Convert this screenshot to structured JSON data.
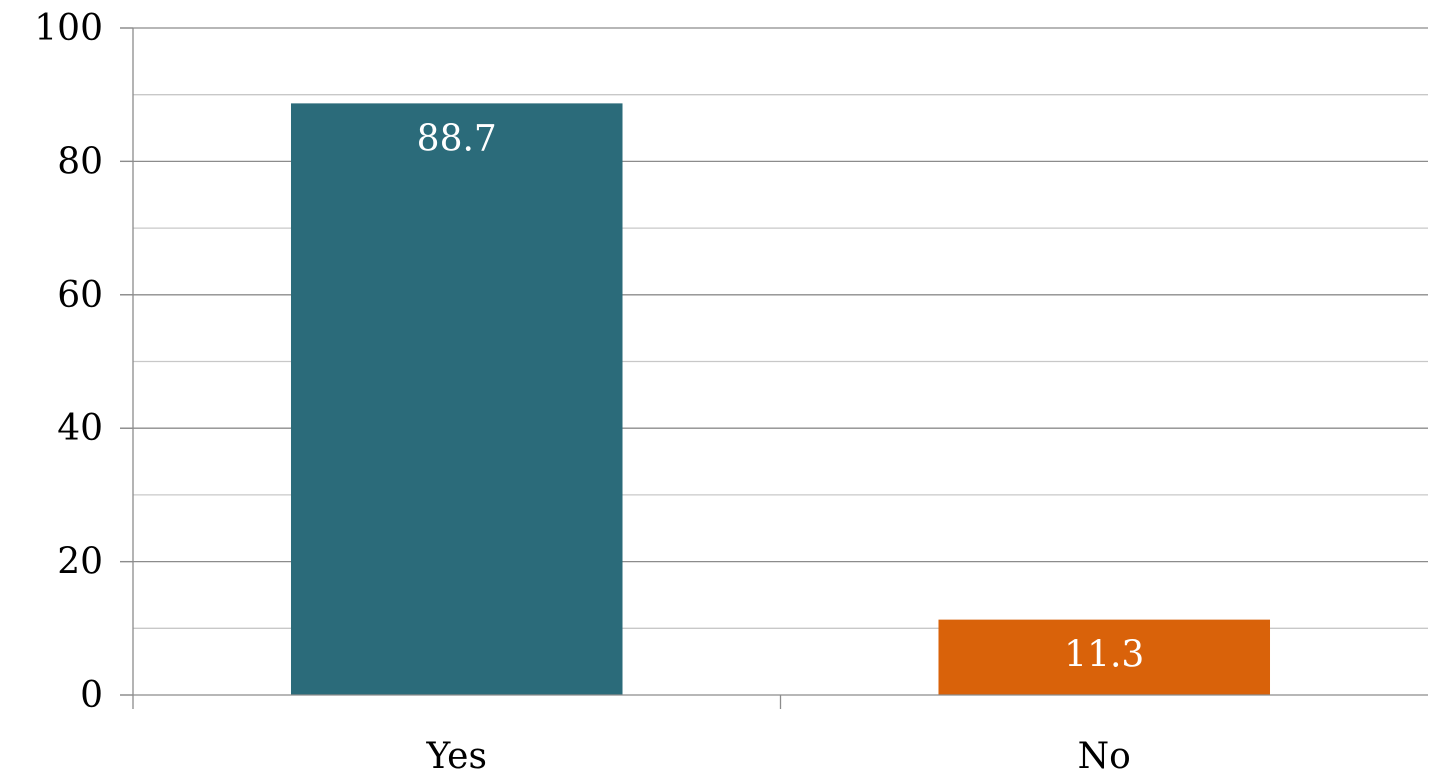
{
  "chart_data": {
    "type": "bar",
    "categories": [
      "Yes",
      "No"
    ],
    "values": [
      88.7,
      11.3
    ],
    "data_labels": [
      "88.7",
      "11.3"
    ],
    "title": "",
    "xlabel": "",
    "ylabel": "",
    "ylim": [
      0,
      100
    ],
    "y_ticks": [
      "0",
      "20",
      "40",
      "60",
      "80",
      "100"
    ],
    "y_tick_values": [
      0,
      20,
      40,
      60,
      80,
      100
    ],
    "minor_gridlines": true,
    "grid": true,
    "legend": "none",
    "colors": [
      "#2b6b7a",
      "#d9620a"
    ]
  }
}
